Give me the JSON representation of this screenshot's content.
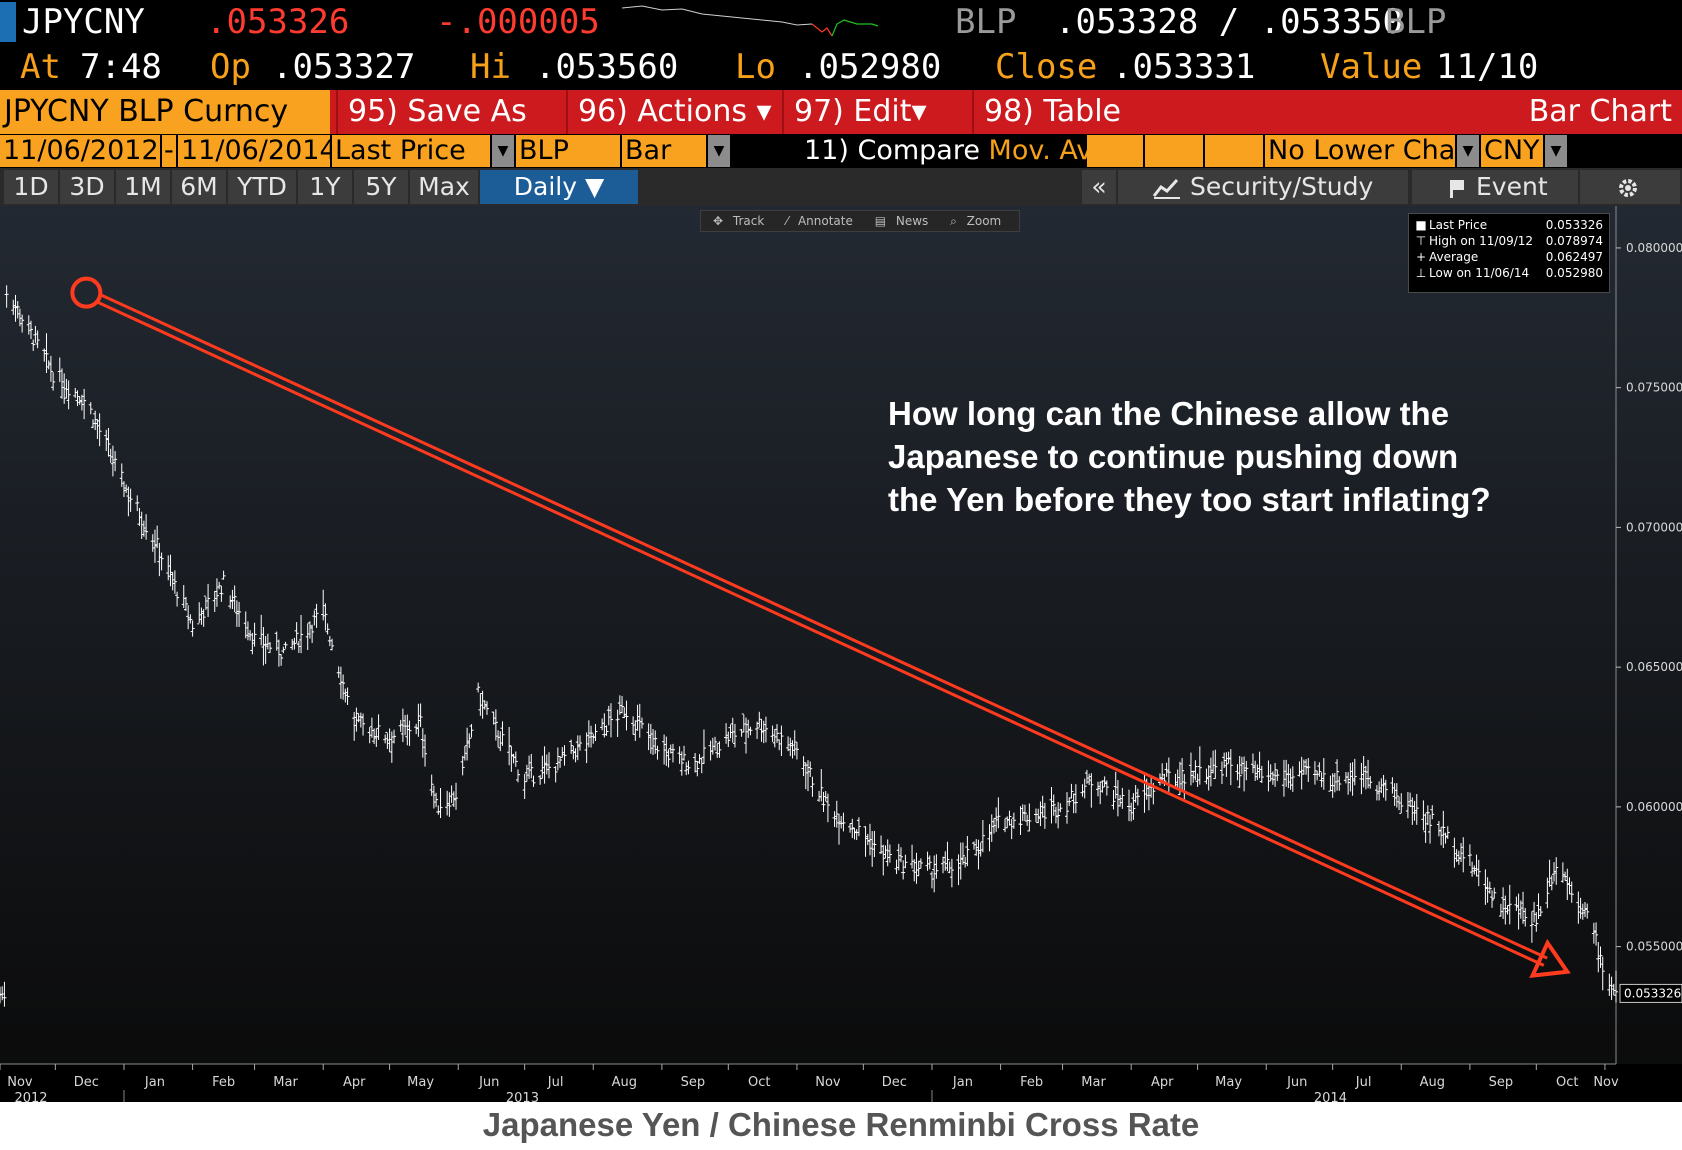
{
  "header": {
    "ticker": "JPYCNY",
    "last": ".053326",
    "change": "-.000005",
    "bid_src": "BLP",
    "bid_ask": ".053328 / .053350",
    "ask_src": "BLP",
    "at_label": "At",
    "at_time": "7:48",
    "op_label": "Op",
    "op_value": ".053327",
    "hi_label": "Hi",
    "hi_value": ".053560",
    "lo_label": "Lo",
    "lo_value": ".052980",
    "close_label": "Close",
    "close_value": ".053331",
    "value_label": "Value",
    "value_value": "11/10"
  },
  "toolbar": {
    "security": "JPYCNY BLP Curncy",
    "save_as": "95) Save As",
    "actions": "96) Actions ▾",
    "edit": "97) Edit▾",
    "table": "98) Table",
    "title": "Bar Chart"
  },
  "params": {
    "start_date": "11/06/2012",
    "dash": "-",
    "end_date": "11/06/2014",
    "field": "Last Price",
    "source": "BLP",
    "style": "Bar",
    "compare": "11) Compare",
    "mov_avgs": "Mov. Avgs",
    "lower_chart": "No Lower Chart",
    "currency": "CNY"
  },
  "periods": [
    "1D",
    "3D",
    "1M",
    "6M",
    "YTD",
    "1Y",
    "5Y",
    "Max"
  ],
  "frequency": "Daily ▼",
  "right_buttons": {
    "collapse": "«",
    "security_study": "Security/Study",
    "event": "Event",
    "settings_icon": "gear-icon"
  },
  "chart_toolbar": [
    "Track",
    "Annotate",
    "News",
    "Zoom"
  ],
  "legend": [
    {
      "label": "Last Price",
      "value": "0.053326"
    },
    {
      "label": "High on 11/09/12",
      "value": "0.078974"
    },
    {
      "label": "Average",
      "value": "0.062497"
    },
    {
      "label": "Low on 11/06/14",
      "value": "0.052980"
    }
  ],
  "annotation": "How long can the Chinese allow the Japanese to continue pushing down the Yen before they too start inflating?",
  "caption": "Japanese Yen / Chinese Renminbi Cross Rate",
  "colors": {
    "orange": "#f9a21f",
    "red_bar": "#cc1a1e",
    "arrow": "#ff3b1f",
    "bars": "#ffffff"
  },
  "chart_data": {
    "type": "bar",
    "subtype": "ohlc-daily",
    "series": [
      {
        "name": "Last Price",
        "values": []
      }
    ],
    "x_start": "2012-11-06",
    "x_end": "2014-11-06",
    "month_ticks": [
      "Nov",
      "Dec",
      "Jan",
      "Feb",
      "Mar",
      "Apr",
      "May",
      "Jun",
      "Jul",
      "Aug",
      "Sep",
      "Oct",
      "Nov",
      "Dec",
      "Jan",
      "Feb",
      "Mar",
      "Apr",
      "May",
      "Jun",
      "Jul",
      "Aug",
      "Sep",
      "Oct",
      "Nov"
    ],
    "year_labels": [
      "2012",
      "2013",
      "2014"
    ],
    "y_ticks": [
      "0.080000",
      "0.075000",
      "0.070000",
      "0.065000",
      "0.060000",
      "0.055000"
    ],
    "ylim": [
      0.0508,
      0.0815
    ],
    "last_value_label": "0.053326",
    "key_points": [
      {
        "date": "2012-11-09",
        "close": 0.0785
      },
      {
        "date": "2012-11-30",
        "close": 0.0755
      },
      {
        "date": "2012-12-15",
        "close": 0.0745
      },
      {
        "date": "2013-01-01",
        "close": 0.0715
      },
      {
        "date": "2013-01-15",
        "close": 0.0695
      },
      {
        "date": "2013-02-01",
        "close": 0.0665
      },
      {
        "date": "2013-02-15",
        "close": 0.068
      },
      {
        "date": "2013-03-01",
        "close": 0.066
      },
      {
        "date": "2013-03-15",
        "close": 0.0655
      },
      {
        "date": "2013-04-01",
        "close": 0.067
      },
      {
        "date": "2013-04-15",
        "close": 0.063
      },
      {
        "date": "2013-05-01",
        "close": 0.0625
      },
      {
        "date": "2013-05-15",
        "close": 0.063
      },
      {
        "date": "2013-05-22",
        "close": 0.06
      },
      {
        "date": "2013-06-01",
        "close": 0.0605
      },
      {
        "date": "2013-06-10",
        "close": 0.064
      },
      {
        "date": "2013-06-20",
        "close": 0.0625
      },
      {
        "date": "2013-07-01",
        "close": 0.061
      },
      {
        "date": "2013-07-15",
        "close": 0.0615
      },
      {
        "date": "2013-08-01",
        "close": 0.0625
      },
      {
        "date": "2013-08-15",
        "close": 0.0635
      },
      {
        "date": "2013-09-01",
        "close": 0.062
      },
      {
        "date": "2013-09-15",
        "close": 0.0615
      },
      {
        "date": "2013-10-01",
        "close": 0.0625
      },
      {
        "date": "2013-10-15",
        "close": 0.063
      },
      {
        "date": "2013-11-01",
        "close": 0.062
      },
      {
        "date": "2013-11-15",
        "close": 0.06
      },
      {
        "date": "2013-12-01",
        "close": 0.059
      },
      {
        "date": "2013-12-15",
        "close": 0.058
      },
      {
        "date": "2014-01-01",
        "close": 0.0577
      },
      {
        "date": "2014-01-15",
        "close": 0.058
      },
      {
        "date": "2014-02-01",
        "close": 0.0595
      },
      {
        "date": "2014-02-15",
        "close": 0.0597
      },
      {
        "date": "2014-03-01",
        "close": 0.06
      },
      {
        "date": "2014-03-15",
        "close": 0.061
      },
      {
        "date": "2014-04-01",
        "close": 0.06
      },
      {
        "date": "2014-04-15",
        "close": 0.061
      },
      {
        "date": "2014-05-01",
        "close": 0.0612
      },
      {
        "date": "2014-05-15",
        "close": 0.0615
      },
      {
        "date": "2014-06-01",
        "close": 0.061
      },
      {
        "date": "2014-06-15",
        "close": 0.0612
      },
      {
        "date": "2014-07-01",
        "close": 0.061
      },
      {
        "date": "2014-07-15",
        "close": 0.0612
      },
      {
        "date": "2014-08-01",
        "close": 0.0602
      },
      {
        "date": "2014-08-15",
        "close": 0.0595
      },
      {
        "date": "2014-09-01",
        "close": 0.058
      },
      {
        "date": "2014-09-15",
        "close": 0.0565
      },
      {
        "date": "2014-10-01",
        "close": 0.056
      },
      {
        "date": "2014-10-10",
        "close": 0.058
      },
      {
        "date": "2014-10-25",
        "close": 0.056
      },
      {
        "date": "2014-11-01",
        "close": 0.054
      },
      {
        "date": "2014-11-06",
        "close": 0.0533
      }
    ],
    "trend_arrow": {
      "from": {
        "date": "2012-12-15",
        "value": 0.0784
      },
      "to": {
        "date": "2014-10-15",
        "value": 0.0541
      }
    }
  }
}
